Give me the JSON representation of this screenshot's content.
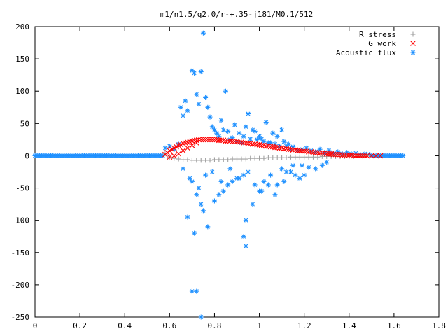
{
  "chart_data": {
    "type": "scatter",
    "title": "m1/n1.5/q2.0/r-+.35-j181/M0.1/512",
    "xlabel": "",
    "ylabel": "",
    "xlim": [
      0,
      1.8
    ],
    "ylim": [
      -250,
      200
    ],
    "xticks": [
      "0",
      "0.2",
      "0.4",
      "0.6",
      "0.8",
      "1",
      "1.2",
      "1.4",
      "1.6",
      "1.8"
    ],
    "yticks": [
      "200",
      "150",
      "100",
      "50",
      "0",
      "-50",
      "-100",
      "-150",
      "-200",
      "-250"
    ],
    "legend_position": "top-right",
    "grid": false,
    "series": [
      {
        "name": "R stress",
        "marker": "+",
        "color": "#a0a0a0",
        "x": [
          0.58,
          0.6,
          0.62,
          0.64,
          0.66,
          0.68,
          0.7,
          0.72,
          0.74,
          0.76,
          0.78,
          0.8,
          0.82,
          0.84,
          0.86,
          0.88,
          0.9,
          0.92,
          0.94,
          0.96,
          0.98,
          1.0,
          1.02,
          1.04,
          1.06,
          1.08,
          1.1,
          1.12,
          1.14,
          1.16,
          1.18,
          1.2,
          1.22,
          1.24,
          1.26,
          1.28,
          1.3,
          1.32,
          1.34,
          1.36,
          1.38,
          1.4,
          1.42,
          1.44,
          1.46,
          1.48
        ],
        "y": [
          3,
          -2,
          -4,
          -5,
          -6,
          -6,
          -7,
          -7,
          -7,
          -7,
          -7,
          -6,
          -6,
          -6,
          -6,
          -5,
          -5,
          -5,
          -5,
          -4,
          -4,
          -4,
          -4,
          -3,
          -3,
          -3,
          -3,
          -3,
          -2,
          -2,
          -2,
          -2,
          -2,
          -2,
          -2,
          -1,
          -1,
          -1,
          -1,
          -1,
          -1,
          -1,
          -1,
          0,
          0,
          0
        ]
      },
      {
        "name": "G work",
        "marker": "x",
        "color": "#ff0000",
        "x": [
          0.58,
          0.59,
          0.6,
          0.61,
          0.62,
          0.63,
          0.64,
          0.65,
          0.66,
          0.67,
          0.68,
          0.69,
          0.7,
          0.71,
          0.72,
          0.73,
          0.74,
          0.75,
          0.76,
          0.77,
          0.78,
          0.79,
          0.8,
          0.81,
          0.82,
          0.83,
          0.84,
          0.85,
          0.86,
          0.87,
          0.88,
          0.89,
          0.9,
          0.91,
          0.92,
          0.93,
          0.94,
          0.95,
          0.96,
          0.97,
          0.98,
          0.99,
          1.0,
          1.01,
          1.02,
          1.03,
          1.04,
          1.05,
          1.06,
          1.07,
          1.08,
          1.09,
          1.1,
          1.11,
          1.12,
          1.13,
          1.14,
          1.15,
          1.16,
          1.17,
          1.18,
          1.19,
          1.2,
          1.21,
          1.22,
          1.23,
          1.24,
          1.25,
          1.26,
          1.27,
          1.28,
          1.29,
          1.3,
          1.31,
          1.32,
          1.33,
          1.34,
          1.35,
          1.36,
          1.37,
          1.38,
          1.39,
          1.4,
          1.41,
          1.42,
          1.43,
          1.44,
          1.45,
          1.46,
          1.47,
          1.48,
          1.5,
          1.52,
          1.54,
          0.6,
          0.62,
          0.64,
          0.66,
          0.68,
          0.7,
          0.72
        ],
        "y": [
          2,
          5,
          8,
          10,
          12,
          14,
          16,
          17,
          19,
          20,
          21,
          22,
          23,
          24,
          24,
          25,
          25,
          25,
          25,
          25,
          25,
          25,
          25,
          25,
          24,
          24,
          24,
          23,
          23,
          23,
          22,
          22,
          22,
          21,
          21,
          20,
          20,
          19,
          19,
          18,
          18,
          17,
          17,
          16,
          16,
          15,
          15,
          14,
          14,
          13,
          13,
          12,
          12,
          11,
          11,
          10,
          10,
          9,
          9,
          8,
          8,
          7,
          7,
          7,
          6,
          6,
          5,
          5,
          5,
          4,
          4,
          4,
          3,
          3,
          3,
          2,
          2,
          2,
          2,
          1,
          1,
          1,
          1,
          1,
          0,
          0,
          0,
          0,
          0,
          0,
          0,
          0,
          0,
          0,
          -2,
          0,
          3,
          8,
          12,
          16,
          20
        ]
      },
      {
        "name": "Acoustic flux",
        "marker": "*",
        "color": "#1e90ff",
        "x": [
          0.58,
          0.6,
          0.62,
          0.64,
          0.66,
          0.65,
          0.67,
          0.68,
          0.7,
          0.71,
          0.72,
          0.73,
          0.74,
          0.75,
          0.76,
          0.77,
          0.78,
          0.79,
          0.8,
          0.81,
          0.82,
          0.83,
          0.84,
          0.85,
          0.86,
          0.87,
          0.88,
          0.89,
          0.9,
          0.91,
          0.92,
          0.93,
          0.94,
          0.95,
          0.96,
          0.97,
          0.98,
          0.99,
          1.0,
          1.01,
          1.02,
          1.03,
          1.04,
          1.05,
          1.06,
          1.07,
          1.08,
          1.09,
          1.1,
          1.11,
          1.12,
          1.13,
          1.14,
          1.15,
          1.17,
          1.19,
          1.21,
          1.23,
          1.25,
          1.27,
          1.29,
          1.31,
          1.33,
          1.35,
          1.37,
          1.39,
          1.41,
          1.43,
          1.45,
          1.47,
          1.49,
          0.7,
          0.72,
          0.74,
          0.75,
          0.68,
          0.71,
          0.77,
          0.8,
          0.82,
          0.84,
          0.86,
          0.88,
          0.9,
          0.93,
          0.95,
          0.98,
          1.0,
          1.02,
          1.05,
          1.08,
          1.1,
          1.12,
          1.15,
          1.18,
          1.2,
          1.22,
          1.25,
          1.28,
          1.3,
          0.66,
          0.69,
          0.73,
          0.76,
          0.79,
          0.83,
          0.87,
          0.91,
          0.94,
          0.97,
          1.01,
          1.04,
          1.07,
          1.11,
          1.14,
          1.16,
          1.19,
          0.72,
          0.74,
          0.7,
          0.94,
          0.93
        ],
        "y": [
          12,
          15,
          10,
          18,
          62,
          75,
          85,
          70,
          132,
          128,
          95,
          80,
          130,
          190,
          90,
          75,
          60,
          45,
          40,
          35,
          30,
          55,
          40,
          100,
          38,
          25,
          28,
          48,
          22,
          35,
          20,
          30,
          45,
          65,
          26,
          40,
          38,
          25,
          30,
          26,
          22,
          52,
          20,
          20,
          35,
          18,
          30,
          15,
          40,
          22,
          15,
          18,
          10,
          14,
          8,
          10,
          12,
          8,
          6,
          10,
          5,
          8,
          4,
          6,
          3,
          5,
          3,
          4,
          2,
          3,
          2,
          -40,
          -60,
          -75,
          -85,
          -95,
          -120,
          -110,
          -70,
          -60,
          -55,
          -45,
          -40,
          -35,
          -30,
          -25,
          -45,
          -55,
          -40,
          -30,
          -45,
          -20,
          -25,
          -15,
          -35,
          -30,
          -18,
          -20,
          -15,
          -10,
          -20,
          -35,
          -50,
          -30,
          -25,
          -40,
          -20,
          -35,
          -100,
          -75,
          -55,
          -45,
          -60,
          -40,
          -25,
          -30,
          -15,
          -210,
          -250,
          -210,
          -140,
          -125
        ]
      }
    ]
  }
}
